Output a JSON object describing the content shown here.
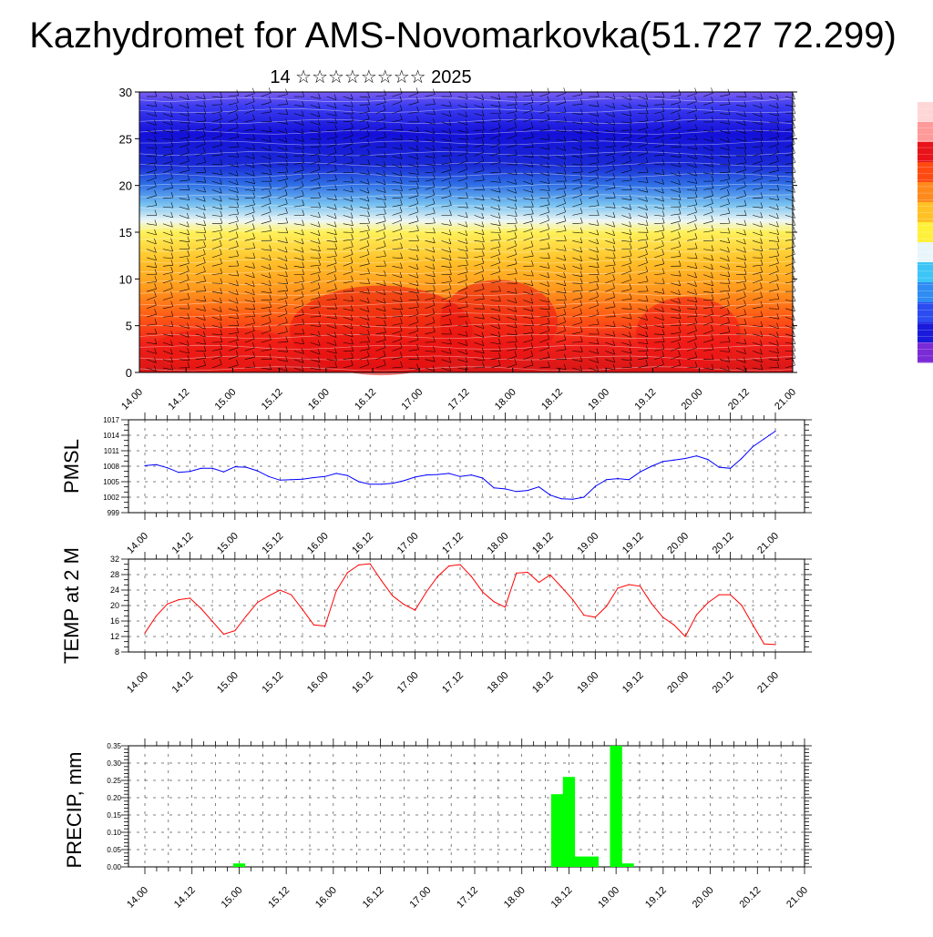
{
  "title": "Kazhydromet for AMS-Novomarkovka(51.727 72.299)",
  "subtitle": "14 ☆☆☆☆☆☆☆☆ 2025",
  "x_ticks": [
    "14.00",
    "14.12",
    "15.00",
    "15.12",
    "16.00",
    "16.12",
    "17.00",
    "17.12",
    "18.00",
    "18.12",
    "19.00",
    "19.12",
    "20.00",
    "20.12",
    "21.00"
  ],
  "chart_data": [
    {
      "type": "heatmap",
      "name": "cross-section",
      "x_ticks": [
        "14.00",
        "14.12",
        "15.00",
        "15.12",
        "16.00",
        "16.12",
        "17.00",
        "17.12",
        "18.00",
        "18.12",
        "19.00",
        "19.12",
        "20.00",
        "20.12",
        "21.00"
      ],
      "ylim": [
        0,
        30
      ],
      "y_ticks": [
        0,
        5,
        10,
        15,
        20,
        25,
        30
      ],
      "colorbar": [
        "#7a2bd6",
        "#1a1adb",
        "#2a4cf0",
        "#2f8cf2",
        "#3ec5f7",
        "#e8f6fb",
        "#fff03a",
        "#ffc125",
        "#ff8a1c",
        "#ff4a12",
        "#e8131a",
        "#ff9a9a",
        "#ffd6d6"
      ]
    },
    {
      "type": "line",
      "name": "PMSL",
      "ylabel": "PMSL",
      "ylim": [
        999,
        1017
      ],
      "y_ticks": [
        999,
        1002,
        1005,
        1008,
        1011,
        1014,
        1017
      ],
      "x_ticks": [
        "14.00",
        "14.12",
        "15.00",
        "15.12",
        "16.00",
        "16.12",
        "17.00",
        "17.12",
        "18.00",
        "18.12",
        "19.00",
        "19.12",
        "20.00",
        "20.12",
        "21.00"
      ],
      "x_hours": [
        0,
        3,
        6,
        9,
        12,
        15,
        18,
        21,
        24,
        27,
        30,
        33,
        36,
        39,
        42,
        45,
        48,
        51,
        54,
        57,
        60,
        63,
        66,
        69,
        72,
        75,
        78,
        81,
        84,
        87,
        90,
        93,
        96,
        99,
        102,
        105,
        108,
        111,
        114,
        117,
        120,
        123,
        126,
        129,
        132,
        135,
        138,
        141,
        144,
        147,
        150,
        153,
        156,
        159,
        162,
        165,
        168
      ],
      "values": [
        1008.1,
        1008.3,
        1007.7,
        1006.8,
        1007.0,
        1007.6,
        1007.6,
        1006.9,
        1007.9,
        1007.8,
        1007.1,
        1006.0,
        1005.3,
        1005.4,
        1005.5,
        1005.8,
        1006.0,
        1006.6,
        1006.2,
        1005.0,
        1004.5,
        1004.5,
        1004.7,
        1005.2,
        1005.9,
        1006.3,
        1006.4,
        1006.6,
        1006.0,
        1006.3,
        1005.7,
        1003.8,
        1003.6,
        1003.1,
        1003.3,
        1004.0,
        1002.4,
        1001.7,
        1001.6,
        1002.0,
        1004.1,
        1005.4,
        1005.6,
        1005.4,
        1006.9,
        1008.0,
        1008.9,
        1009.2,
        1009.5,
        1010.0,
        1009.3,
        1007.8,
        1007.6,
        1009.5,
        1011.8,
        1013.3,
        1014.8
      ],
      "line_color": "#0000ff"
    },
    {
      "type": "line",
      "name": "TEMP at 2 M",
      "ylabel": "TEMP at 2 M",
      "ylim": [
        8,
        32
      ],
      "y_ticks": [
        8,
        12,
        16,
        20,
        24,
        28,
        32
      ],
      "x_ticks": [
        "14.00",
        "14.12",
        "15.00",
        "15.12",
        "16.00",
        "16.12",
        "17.00",
        "17.12",
        "18.00",
        "18.12",
        "19.00",
        "19.12",
        "20.00",
        "20.12",
        "21.00"
      ],
      "x_hours": [
        0,
        3,
        6,
        9,
        12,
        15,
        18,
        21,
        24,
        27,
        30,
        33,
        36,
        39,
        42,
        45,
        48,
        51,
        54,
        57,
        60,
        63,
        66,
        69,
        72,
        75,
        78,
        81,
        84,
        87,
        90,
        93,
        96,
        99,
        102,
        105,
        108,
        111,
        114,
        117,
        120,
        123,
        126,
        129,
        132,
        135,
        138,
        141,
        144,
        147,
        150,
        153,
        156,
        159,
        162,
        165,
        168
      ],
      "values": [
        12.9,
        17.3,
        20.4,
        21.5,
        21.9,
        19.2,
        15.9,
        12.6,
        13.5,
        17.3,
        20.8,
        22.5,
        24.0,
        22.8,
        19.0,
        15.0,
        14.7,
        23.8,
        28.5,
        30.5,
        30.8,
        26.5,
        22.5,
        20.3,
        18.8,
        23.5,
        27.5,
        30.2,
        30.6,
        27.5,
        23.5,
        21.0,
        19.6,
        28.4,
        28.6,
        26.0,
        27.9,
        24.8,
        21.5,
        17.5,
        17.0,
        19.8,
        24.5,
        25.4,
        25.0,
        20.5,
        17.0,
        15.0,
        12.0,
        17.6,
        20.7,
        22.8,
        22.8,
        20.1,
        15.0,
        10.1,
        9.9
      ],
      "line_color": "#ff0000"
    },
    {
      "type": "bar",
      "name": "PRECIP, mm",
      "ylabel": "PRECIP, mm",
      "ylim": [
        0,
        0.35
      ],
      "y_ticks": [
        "0.00",
        "0.05",
        "0.10",
        "0.15",
        "0.20",
        "0.25",
        "0.30",
        "0.35"
      ],
      "x_ticks": [
        "14.00",
        "14.12",
        "15.00",
        "15.12",
        "16.00",
        "16.12",
        "17.00",
        "17.12",
        "18.00",
        "18.12",
        "19.00",
        "19.12",
        "20.00",
        "20.12",
        "21.00"
      ],
      "bars": [
        {
          "hour": 24,
          "value": 0.01
        },
        {
          "hour": 105,
          "value": 0.21
        },
        {
          "hour": 108,
          "value": 0.26
        },
        {
          "hour": 111,
          "value": 0.03
        },
        {
          "hour": 114,
          "value": 0.03
        },
        {
          "hour": 120,
          "value": 0.35
        },
        {
          "hour": 123,
          "value": 0.01
        }
      ],
      "bar_color": "#00ff00"
    }
  ]
}
